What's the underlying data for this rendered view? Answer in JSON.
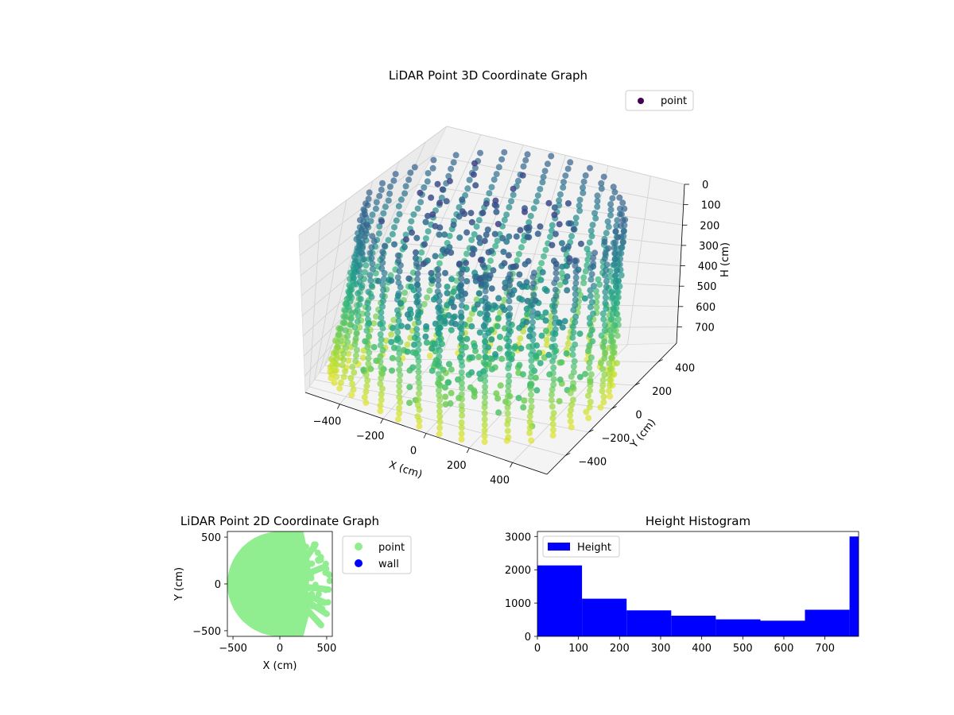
{
  "colors": {
    "viridis": [
      "#440154",
      "#482878",
      "#3e4a89",
      "#31688e",
      "#26828e",
      "#1f9e89",
      "#35b779",
      "#6ece58",
      "#b5de2b",
      "#fde725"
    ],
    "point2d": "#90ee90",
    "wall": "#0000ff",
    "hist": "#0000ff"
  },
  "chart_data": [
    {
      "type": "scatter",
      "title": "LiDAR Point 3D Coordinate Graph",
      "xlabel": "X (cm)",
      "ylabel": "Y (cm)",
      "zlabel": "H (cm)",
      "xlim": [
        -560,
        560
      ],
      "ylim": [
        -560,
        560
      ],
      "zlim": [
        0,
        780
      ],
      "z_inverted": true,
      "x_ticks": [
        "−400",
        "−200",
        "0",
        "200",
        "400"
      ],
      "y_ticks": [
        "−400",
        "−200",
        "0",
        "200",
        "400"
      ],
      "z_ticks": [
        "0",
        "100",
        "200",
        "300",
        "400",
        "500",
        "600",
        "700"
      ],
      "legend": [
        "point"
      ],
      "colormap": "viridis",
      "description_points": "cylindrical wall scan, radius ~520 cm, height 0-780 cm, plus scattered interior points"
    },
    {
      "type": "scatter",
      "title": "LiDAR Point 2D Coordinate Graph",
      "xlabel": "X (cm)",
      "ylabel": "Y (cm)",
      "xlim": [
        -560,
        560
      ],
      "ylim": [
        -560,
        560
      ],
      "x_ticks": [
        "−500",
        "0",
        "500"
      ],
      "y_ticks": [
        "−500",
        "0",
        "500"
      ],
      "legend": [
        "point",
        "wall"
      ]
    },
    {
      "type": "bar",
      "title": "Height Histogram",
      "legend": [
        "Height"
      ],
      "bin_edges": [
        0,
        108.6,
        217.1,
        325.7,
        434.3,
        542.9,
        651.4,
        760
      ],
      "values": [
        2130,
        1130,
        780,
        620,
        510,
        470,
        800
      ],
      "last_bar": {
        "x0": 760,
        "x1": 782,
        "value": 3000
      },
      "xlim": [
        0,
        782
      ],
      "ylim": [
        0,
        3150
      ],
      "x_ticks": [
        "0",
        "100",
        "200",
        "300",
        "400",
        "500",
        "600",
        "700"
      ],
      "y_ticks": [
        "0",
        "1000",
        "2000",
        "3000"
      ]
    }
  ]
}
